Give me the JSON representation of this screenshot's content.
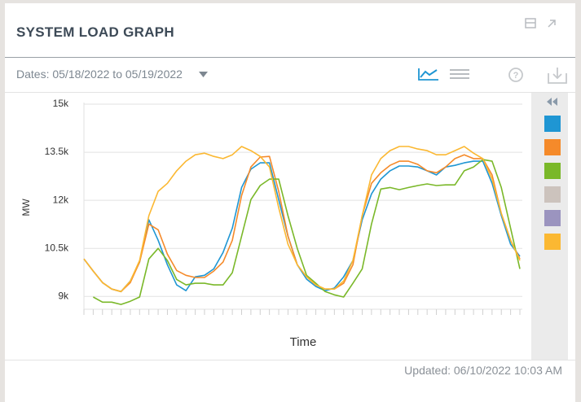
{
  "header": {
    "title": "SYSTEM LOAD GRAPH"
  },
  "toolbar": {
    "dates": "Dates: 05/18/2022 to 05/19/2022"
  },
  "footer": {
    "updated": "Updated: 06/10/2022 10:03 AM"
  },
  "chart_data": {
    "type": "line",
    "xlabel": "Time",
    "ylabel": "MW",
    "ylim": [
      8600,
      15000
    ],
    "yticks": [
      {
        "value": 9000,
        "label": "9k"
      },
      {
        "value": 10500,
        "label": "10.5k"
      },
      {
        "value": 12000,
        "label": "12k"
      },
      {
        "value": 13500,
        "label": "13.5k"
      },
      {
        "value": 15000,
        "label": "15k"
      }
    ],
    "grid": true,
    "series": [
      {
        "color": "#1f96d3",
        "values": [
          10170,
          9790,
          9430,
          9230,
          9150,
          9480,
          10070,
          11390,
          10750,
          9990,
          9360,
          9180,
          9610,
          9660,
          9860,
          10370,
          11130,
          12400,
          12970,
          13170,
          13170,
          12020,
          10880,
          9990,
          9540,
          9310,
          9180,
          9260,
          9610,
          10120,
          11390,
          12200,
          12660,
          12920,
          13070,
          13070,
          13040,
          12920,
          12790,
          13040,
          13090,
          13170,
          13220,
          13220,
          12530,
          11520,
          10630,
          10250
        ]
      },
      {
        "color": "#f58a2a",
        "values": [
          10170,
          9790,
          9430,
          9230,
          9150,
          9430,
          10070,
          11260,
          11080,
          10320,
          9810,
          9660,
          9590,
          9590,
          9790,
          10070,
          10750,
          12150,
          13040,
          13350,
          13370,
          12280,
          10880,
          9990,
          9610,
          9360,
          9230,
          9230,
          9410,
          9990,
          11520,
          12530,
          12860,
          13090,
          13220,
          13220,
          13120,
          12920,
          12860,
          13040,
          13300,
          13420,
          13300,
          13300,
          12790,
          11590,
          10750,
          10170
        ]
      },
      {
        "color": "#7ab829",
        "values": [
          null,
          8980,
          8820,
          8820,
          8750,
          8850,
          8980,
          10170,
          10500,
          10120,
          9530,
          9360,
          9410,
          9410,
          9360,
          9360,
          9740,
          10880,
          12020,
          12460,
          12660,
          12660,
          11520,
          10500,
          9660,
          9410,
          9150,
          9050,
          8980,
          9410,
          9860,
          11260,
          12350,
          12400,
          12330,
          12400,
          12460,
          12510,
          12460,
          12480,
          12480,
          12920,
          13040,
          13270,
          13220,
          12400,
          11130,
          9860
        ]
      },
      {
        "color": "#ccc3bd",
        "values": [
          null,
          null,
          null,
          null,
          null,
          null,
          null,
          null,
          null,
          null,
          null,
          null,
          null,
          null,
          null,
          null,
          null,
          null,
          null,
          null,
          null,
          null,
          null,
          null,
          null,
          null,
          null,
          null,
          null,
          null,
          null,
          null,
          null,
          null,
          null,
          null,
          null,
          null,
          null,
          null,
          null,
          null,
          null,
          null,
          null,
          null,
          null,
          null
        ]
      },
      {
        "color": "#9b94bf",
        "values": [
          null,
          null,
          null,
          null,
          null,
          null,
          null,
          null,
          null,
          null,
          null,
          null,
          null,
          null,
          null,
          null,
          null,
          null,
          null,
          null,
          null,
          null,
          null,
          null,
          null,
          null,
          null,
          null,
          null,
          null,
          null,
          null,
          null,
          null,
          null,
          null,
          null,
          null,
          null,
          null,
          null,
          null,
          null,
          null,
          null,
          null,
          null,
          null
        ]
      },
      {
        "color": "#fbb832",
        "values": [
          10170,
          9790,
          9430,
          9230,
          9150,
          9480,
          10120,
          11520,
          12280,
          12530,
          12920,
          13220,
          13420,
          13470,
          13370,
          13300,
          13420,
          13680,
          13550,
          13370,
          13040,
          11770,
          10630,
          9990,
          9610,
          9360,
          9230,
          9230,
          9480,
          10120,
          11520,
          12790,
          13300,
          13550,
          13680,
          13680,
          13600,
          13550,
          13420,
          13420,
          13550,
          13680,
          13470,
          13300,
          12660,
          11590,
          10750,
          10120
        ]
      }
    ]
  }
}
